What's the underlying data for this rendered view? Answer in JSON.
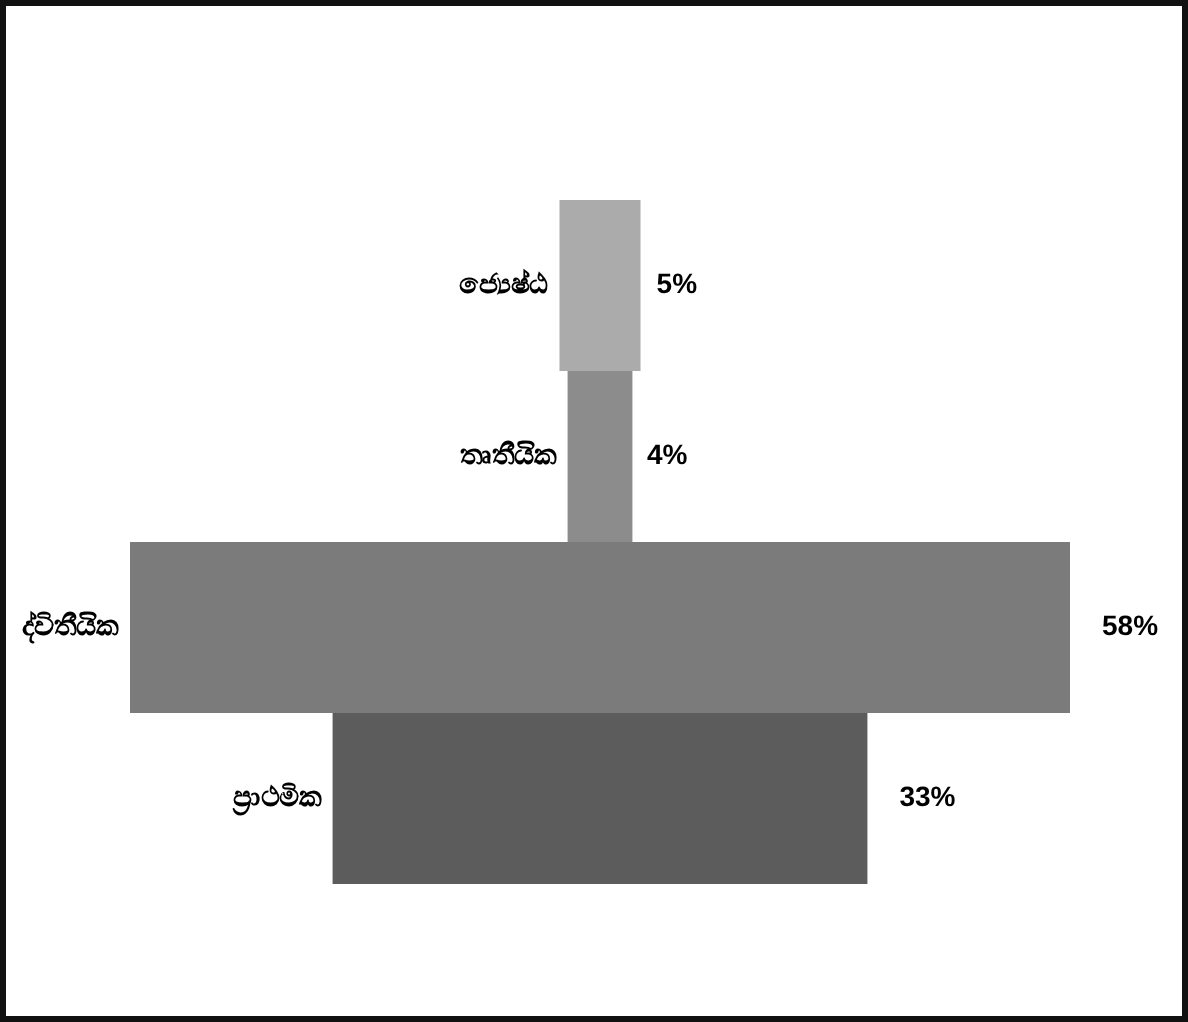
{
  "chart_data": {
    "type": "other",
    "categories": [
      "ජ්‍යෙෂ්ඨ",
      "තෘතීයික",
      "ද්විතීයික",
      "ප්‍රාථමික"
    ],
    "values": [
      5,
      4,
      58,
      33
    ],
    "value_labels": [
      "5%",
      "4%",
      "58%",
      "33%"
    ],
    "colors": [
      "#ababab",
      "#8c8c8c",
      "#7b7b7b",
      "#5c5c5c"
    ]
  }
}
